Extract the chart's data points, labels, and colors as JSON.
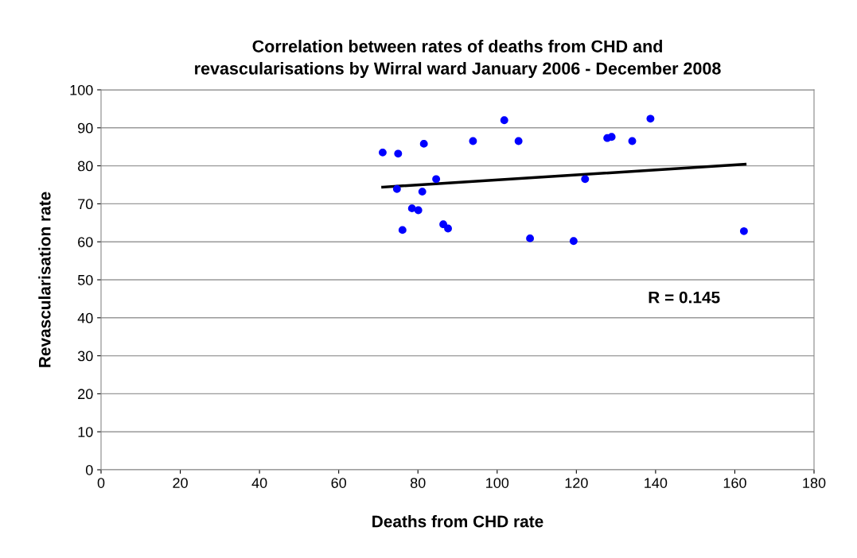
{
  "chart_data": {
    "type": "scatter",
    "title": "Correlation between rates of deaths from CHD and\nrevascularisations by Wirral ward January 2006 - December 2008",
    "xlabel": "Deaths from CHD rate",
    "ylabel": "Revascularisation rate",
    "series": [
      {
        "color": "#0000ff",
        "marker": "circle",
        "x": [
          71.1,
          75.0,
          81.5,
          93.9,
          101.8,
          105.4,
          84.6,
          74.7,
          81.1,
          78.5,
          80.1,
          76.1,
          86.4,
          87.6,
          108.3,
          119.3,
          122.2,
          127.8,
          128.9,
          134.1,
          138.7,
          162.3
        ],
        "values": [
          83.5,
          83.2,
          85.8,
          86.5,
          92.0,
          86.5,
          76.5,
          73.9,
          73.2,
          68.8,
          68.3,
          63.1,
          64.6,
          63.5,
          60.9,
          60.2,
          76.5,
          87.3,
          87.6,
          86.5,
          92.4,
          62.8
        ]
      },
      {
        "type": "line",
        "color": "#000000",
        "marker": "none",
        "x": [
          71.1,
          162.6
        ],
        "values": [
          74.4,
          80.4
        ]
      }
    ],
    "annotations": [
      "R = 0.145"
    ],
    "xlim": [
      0,
      180
    ],
    "xticks": [
      0,
      20,
      40,
      60,
      80,
      100,
      120,
      140,
      160,
      180
    ],
    "ylim": [
      0,
      100
    ],
    "yticks": [
      0,
      10,
      20,
      30,
      40,
      50,
      60,
      70,
      80,
      90,
      100
    ],
    "grid": "y",
    "legend": false
  }
}
